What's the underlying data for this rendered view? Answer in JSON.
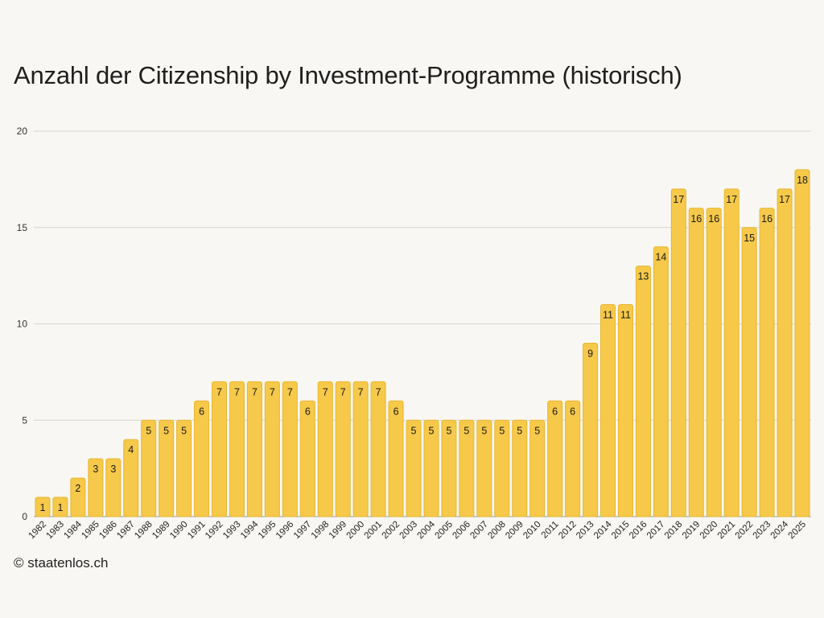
{
  "chart_data": {
    "type": "bar",
    "title": "Anzahl der Citizenship by Investment-Programme (historisch)",
    "categories": [
      "1982",
      "1983",
      "1984",
      "1985",
      "1986",
      "1987",
      "1988",
      "1989",
      "1990",
      "1991",
      "1992",
      "1993",
      "1994",
      "1995",
      "1996",
      "1997",
      "1998",
      "1999",
      "2000",
      "2001",
      "2002",
      "2003",
      "2004",
      "2005",
      "2006",
      "2007",
      "2008",
      "2009",
      "2010",
      "2011",
      "2012",
      "2013",
      "2014",
      "2015",
      "2016",
      "2017",
      "2018",
      "2019",
      "2020",
      "2021",
      "2022",
      "2023",
      "2024",
      "2025"
    ],
    "values": [
      1,
      1,
      2,
      3,
      3,
      4,
      5,
      5,
      5,
      6,
      7,
      7,
      7,
      7,
      7,
      6,
      7,
      7,
      7,
      7,
      6,
      5,
      5,
      5,
      5,
      5,
      5,
      5,
      5,
      6,
      6,
      9,
      11,
      11,
      13,
      14,
      17,
      16,
      16,
      17,
      15,
      16,
      17,
      18
    ],
    "yticks": [
      0,
      5,
      10,
      15,
      20
    ],
    "ylim": [
      0,
      20
    ],
    "xlabel": "",
    "ylabel": "",
    "grid": true,
    "data_labels": true,
    "bar_color": "#f6c94a",
    "bar_edge_color": "#e9b52c"
  },
  "credit": "© staatenlos.ch"
}
